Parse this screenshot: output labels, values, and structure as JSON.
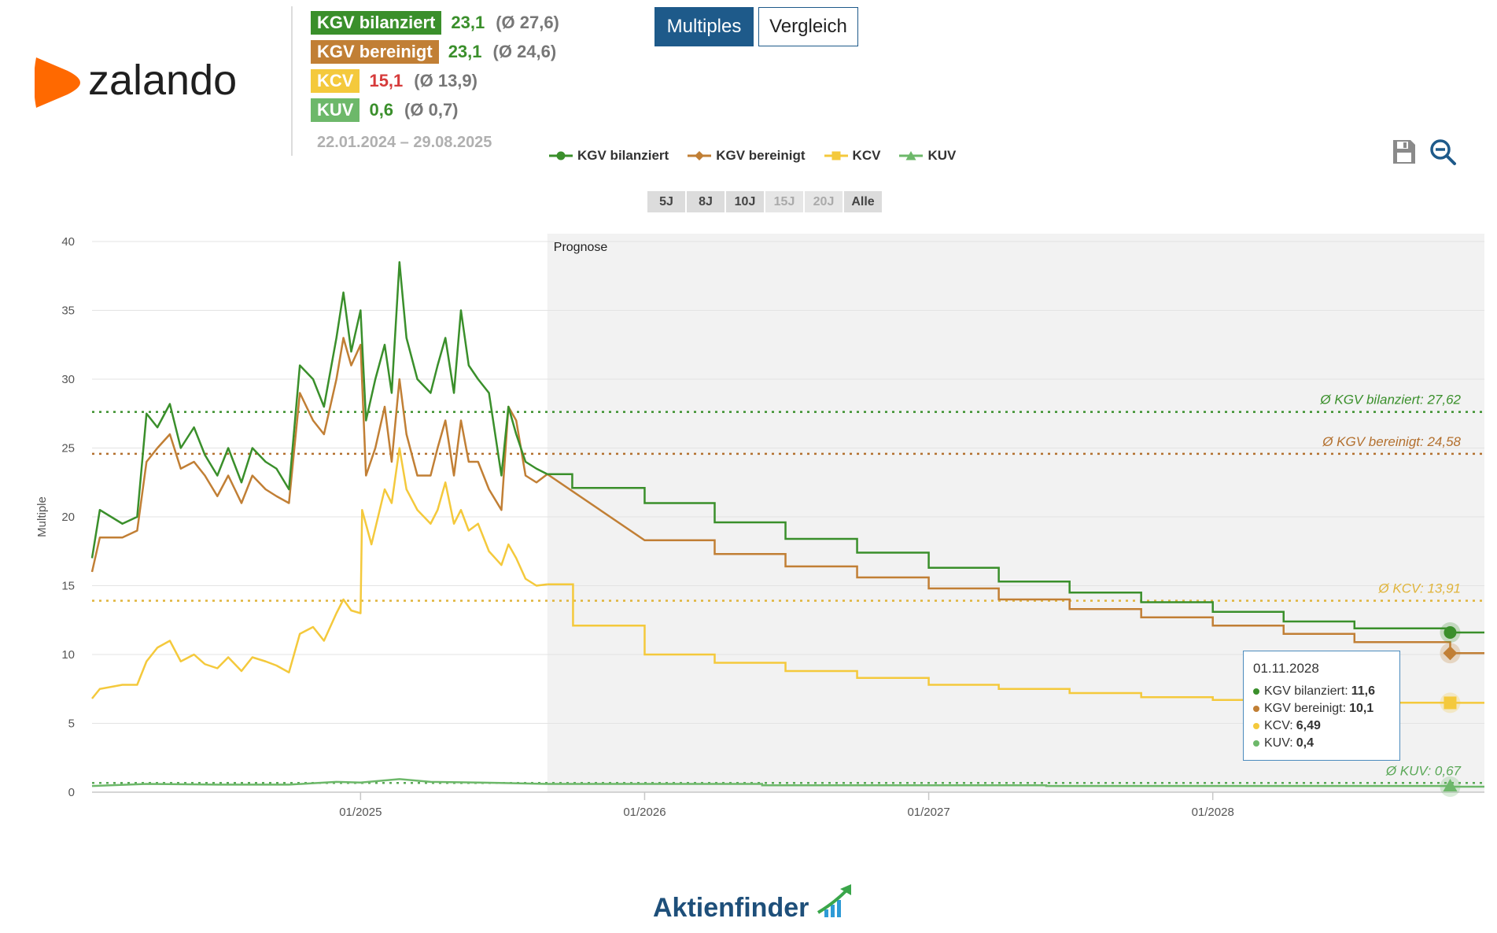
{
  "brand": {
    "name": "zalando",
    "color": "#ff6900"
  },
  "stats": [
    {
      "label": "KGV bilanziert",
      "value": "23,1",
      "avg": "(Ø 27,6)",
      "color": "#3a8f2b",
      "value_color": "#3a8f2b"
    },
    {
      "label": "KGV bereinigt",
      "value": "23,1",
      "avg": "(Ø 24,6)",
      "color": "#c17f35",
      "value_color": "#3a8f2b"
    },
    {
      "label": "KCV",
      "value": "15,1",
      "avg": "(Ø 13,9)",
      "color": "#f4c93c",
      "value_color": "#d63b3b"
    },
    {
      "label": "KUV",
      "value": "0,6",
      "avg": "(Ø 0,7)",
      "color": "#6db86a",
      "value_color": "#3a8f2b"
    }
  ],
  "date_range": "22.01.2024 – 29.08.2025",
  "toggle": {
    "active": "Multiples",
    "inactive": "Vergleich"
  },
  "legend": [
    {
      "label": "KGV bilanziert",
      "color": "#3a8f2b",
      "marker": "circle"
    },
    {
      "label": "KGV bereinigt",
      "color": "#c17f35",
      "marker": "diamond"
    },
    {
      "label": "KCV",
      "color": "#f4c93c",
      "marker": "square"
    },
    {
      "label": "KUV",
      "color": "#6db86a",
      "marker": "triangle"
    }
  ],
  "tools": {
    "save": "save-icon",
    "zoom": "zoom-out-icon"
  },
  "ranges": [
    {
      "label": "5J",
      "enabled": true
    },
    {
      "label": "8J",
      "enabled": true
    },
    {
      "label": "10J",
      "enabled": true
    },
    {
      "label": "15J",
      "enabled": false
    },
    {
      "label": "20J",
      "enabled": false
    },
    {
      "label": "Alle",
      "enabled": true
    }
  ],
  "tooltip": {
    "date": "01.11.2028",
    "rows": [
      {
        "label": "KGV bilanziert:",
        "value": "11,6",
        "color": "#3a8f2b"
      },
      {
        "label": "KGV bereinigt:",
        "value": "10,1",
        "color": "#c17f35"
      },
      {
        "label": "KCV:",
        "value": "6,49",
        "color": "#f4c93c"
      },
      {
        "label": "KUV:",
        "value": "0,4",
        "color": "#6db86a"
      }
    ]
  },
  "footer": {
    "brand": "Aktienfinder"
  },
  "chart_data": {
    "type": "line",
    "ylabel": "Multiple",
    "ylim": [
      0,
      40
    ],
    "yticks": [
      0,
      5,
      10,
      15,
      20,
      25,
      30,
      35,
      40
    ],
    "xlim": [
      "2024-01-22",
      "2028-12-15"
    ],
    "xticks": [
      {
        "date": "2025-01-01",
        "label": "01/2025"
      },
      {
        "date": "2026-01-01",
        "label": "01/2026"
      },
      {
        "date": "2027-01-01",
        "label": "01/2027"
      },
      {
        "date": "2028-01-01",
        "label": "01/2028"
      }
    ],
    "forecast_start": "2025-08-29",
    "forecast_label": "Prognose",
    "averages": [
      {
        "series": "KGV bilanziert",
        "value": 27.62,
        "label": "Ø KGV bilanziert: 27,62",
        "color": "#3a8f2b"
      },
      {
        "series": "KGV bereinigt",
        "value": 24.58,
        "label": "Ø KGV bereinigt: 24,58",
        "color": "#b3702e"
      },
      {
        "series": "KCV",
        "value": 13.91,
        "label": "Ø KCV: 13,91",
        "color": "#e0b43a"
      },
      {
        "series": "KUV",
        "value": 0.67,
        "label": "Ø KUV: 0,67",
        "color": "#5aa857"
      }
    ],
    "series": [
      {
        "name": "KGV bilanziert",
        "color": "#3a8f2b",
        "marker": "circle",
        "history": [
          [
            "2024-01-22",
            17
          ],
          [
            "2024-02-01",
            20.5
          ],
          [
            "2024-03-01",
            19.5
          ],
          [
            "2024-03-20",
            20
          ],
          [
            "2024-04-01",
            27.5
          ],
          [
            "2024-04-15",
            26.5
          ],
          [
            "2024-05-01",
            28.2
          ],
          [
            "2024-05-15",
            25
          ],
          [
            "2024-06-01",
            26.5
          ],
          [
            "2024-06-15",
            24.5
          ],
          [
            "2024-07-01",
            23
          ],
          [
            "2024-07-15",
            25
          ],
          [
            "2024-08-01",
            22.5
          ],
          [
            "2024-08-15",
            25
          ],
          [
            "2024-09-01",
            24
          ],
          [
            "2024-09-15",
            23.5
          ],
          [
            "2024-10-01",
            22
          ],
          [
            "2024-10-15",
            31
          ],
          [
            "2024-11-01",
            30
          ],
          [
            "2024-11-15",
            28
          ],
          [
            "2024-12-01",
            33
          ],
          [
            "2024-12-10",
            36.3
          ],
          [
            "2024-12-20",
            32
          ],
          [
            "2025-01-01",
            35
          ],
          [
            "2025-01-08",
            27
          ],
          [
            "2025-01-20",
            30
          ],
          [
            "2025-02-01",
            32.5
          ],
          [
            "2025-02-10",
            29
          ],
          [
            "2025-02-20",
            38.5
          ],
          [
            "2025-03-01",
            33
          ],
          [
            "2025-03-15",
            30
          ],
          [
            "2025-04-01",
            29
          ],
          [
            "2025-04-10",
            31
          ],
          [
            "2025-04-20",
            33
          ],
          [
            "2025-05-01",
            29
          ],
          [
            "2025-05-10",
            35
          ],
          [
            "2025-05-20",
            31
          ],
          [
            "2025-06-01",
            30
          ],
          [
            "2025-06-15",
            29
          ],
          [
            "2025-07-01",
            23
          ],
          [
            "2025-07-10",
            28
          ],
          [
            "2025-07-20",
            26
          ],
          [
            "2025-08-01",
            24
          ],
          [
            "2025-08-15",
            23.5
          ],
          [
            "2025-08-29",
            23.1
          ]
        ],
        "forecast": [
          [
            "2025-08-29",
            23.1
          ],
          [
            "2025-09-30",
            22.1
          ],
          [
            "2026-01-01",
            21.0
          ],
          [
            "2026-04-01",
            19.6
          ],
          [
            "2026-07-01",
            18.4
          ],
          [
            "2026-10-01",
            17.4
          ],
          [
            "2027-01-01",
            16.3
          ],
          [
            "2027-04-01",
            15.3
          ],
          [
            "2027-07-01",
            14.5
          ],
          [
            "2027-10-01",
            13.8
          ],
          [
            "2028-01-01",
            13.1
          ],
          [
            "2028-04-01",
            12.4
          ],
          [
            "2028-07-01",
            11.9
          ],
          [
            "2028-11-01",
            11.6
          ]
        ]
      },
      {
        "name": "KGV bereinigt",
        "color": "#c17f35",
        "marker": "diamond",
        "history": [
          [
            "2024-01-22",
            16
          ],
          [
            "2024-02-01",
            18.5
          ],
          [
            "2024-03-01",
            18.5
          ],
          [
            "2024-03-20",
            19
          ],
          [
            "2024-04-01",
            24
          ],
          [
            "2024-04-15",
            25
          ],
          [
            "2024-05-01",
            26
          ],
          [
            "2024-05-15",
            23.5
          ],
          [
            "2024-06-01",
            24
          ],
          [
            "2024-06-15",
            23
          ],
          [
            "2024-07-01",
            21.5
          ],
          [
            "2024-07-15",
            23
          ],
          [
            "2024-08-01",
            21
          ],
          [
            "2024-08-15",
            23
          ],
          [
            "2024-09-01",
            22
          ],
          [
            "2024-09-15",
            21.5
          ],
          [
            "2024-10-01",
            21
          ],
          [
            "2024-10-15",
            29
          ],
          [
            "2024-11-01",
            27
          ],
          [
            "2024-11-15",
            26
          ],
          [
            "2024-12-01",
            30
          ],
          [
            "2024-12-10",
            33
          ],
          [
            "2024-12-20",
            31
          ],
          [
            "2025-01-01",
            32.5
          ],
          [
            "2025-01-08",
            23
          ],
          [
            "2025-01-20",
            25
          ],
          [
            "2025-02-01",
            28
          ],
          [
            "2025-02-10",
            24
          ],
          [
            "2025-02-20",
            30
          ],
          [
            "2025-03-01",
            26
          ],
          [
            "2025-03-15",
            23
          ],
          [
            "2025-04-01",
            23
          ],
          [
            "2025-04-10",
            25
          ],
          [
            "2025-04-20",
            27
          ],
          [
            "2025-05-01",
            23
          ],
          [
            "2025-05-10",
            27
          ],
          [
            "2025-05-20",
            24
          ],
          [
            "2025-06-01",
            24
          ],
          [
            "2025-06-15",
            22
          ],
          [
            "2025-07-01",
            20.5
          ],
          [
            "2025-07-10",
            28
          ],
          [
            "2025-07-20",
            27
          ],
          [
            "2025-08-01",
            23
          ],
          [
            "2025-08-15",
            22.5
          ],
          [
            "2025-08-29",
            23.1
          ]
        ],
        "forecast": [
          [
            "2025-08-29",
            23.1
          ],
          [
            "2026-01-01",
            18.3
          ],
          [
            "2026-04-01",
            17.3
          ],
          [
            "2026-07-01",
            16.4
          ],
          [
            "2026-10-01",
            15.6
          ],
          [
            "2027-01-01",
            14.8
          ],
          [
            "2027-04-01",
            14.0
          ],
          [
            "2027-07-01",
            13.3
          ],
          [
            "2027-10-01",
            12.7
          ],
          [
            "2028-01-01",
            12.1
          ],
          [
            "2028-04-01",
            11.5
          ],
          [
            "2028-07-01",
            10.9
          ],
          [
            "2028-11-01",
            10.1
          ]
        ]
      },
      {
        "name": "KCV",
        "color": "#f4c93c",
        "marker": "square",
        "history": [
          [
            "2024-01-22",
            6.8
          ],
          [
            "2024-02-01",
            7.5
          ],
          [
            "2024-03-01",
            7.8
          ],
          [
            "2024-03-20",
            7.8
          ],
          [
            "2024-04-01",
            9.5
          ],
          [
            "2024-04-15",
            10.5
          ],
          [
            "2024-05-01",
            11
          ],
          [
            "2024-05-15",
            9.5
          ],
          [
            "2024-06-01",
            10
          ],
          [
            "2024-06-15",
            9.3
          ],
          [
            "2024-07-01",
            9
          ],
          [
            "2024-07-15",
            9.8
          ],
          [
            "2024-08-01",
            8.8
          ],
          [
            "2024-08-15",
            9.8
          ],
          [
            "2024-09-01",
            9.5
          ],
          [
            "2024-09-15",
            9.2
          ],
          [
            "2024-10-01",
            8.7
          ],
          [
            "2024-10-15",
            11.5
          ],
          [
            "2024-11-01",
            12
          ],
          [
            "2024-11-15",
            11
          ],
          [
            "2024-12-01",
            13
          ],
          [
            "2024-12-10",
            14
          ],
          [
            "2024-12-20",
            13.2
          ],
          [
            "2025-01-01",
            13
          ],
          [
            "2025-01-03",
            20.5
          ],
          [
            "2025-01-15",
            18
          ],
          [
            "2025-02-01",
            22
          ],
          [
            "2025-02-10",
            21
          ],
          [
            "2025-02-20",
            25
          ],
          [
            "2025-03-01",
            22
          ],
          [
            "2025-03-15",
            20.5
          ],
          [
            "2025-04-01",
            19.5
          ],
          [
            "2025-04-10",
            20.5
          ],
          [
            "2025-04-20",
            22.5
          ],
          [
            "2025-05-01",
            19.5
          ],
          [
            "2025-05-10",
            20.5
          ],
          [
            "2025-05-20",
            19
          ],
          [
            "2025-06-01",
            19.5
          ],
          [
            "2025-06-15",
            17.5
          ],
          [
            "2025-07-01",
            16.5
          ],
          [
            "2025-07-10",
            18
          ],
          [
            "2025-07-20",
            17
          ],
          [
            "2025-08-01",
            15.5
          ],
          [
            "2025-08-15",
            15
          ],
          [
            "2025-08-29",
            15.1
          ]
        ],
        "forecast": [
          [
            "2025-08-29",
            15.1
          ],
          [
            "2025-10-01",
            12.1
          ],
          [
            "2026-01-01",
            10.0
          ],
          [
            "2026-04-01",
            9.4
          ],
          [
            "2026-07-01",
            8.8
          ],
          [
            "2026-10-01",
            8.3
          ],
          [
            "2027-01-01",
            7.8
          ],
          [
            "2027-04-01",
            7.5
          ],
          [
            "2027-07-01",
            7.2
          ],
          [
            "2027-10-01",
            6.9
          ],
          [
            "2028-01-01",
            6.7
          ],
          [
            "2028-04-01",
            6.6
          ],
          [
            "2028-07-01",
            6.5
          ],
          [
            "2028-11-01",
            6.49
          ]
        ]
      },
      {
        "name": "KUV",
        "color": "#6db86a",
        "marker": "triangle",
        "history": [
          [
            "2024-01-22",
            0.45
          ],
          [
            "2024-04-01",
            0.6
          ],
          [
            "2024-07-01",
            0.55
          ],
          [
            "2024-10-01",
            0.55
          ],
          [
            "2024-12-01",
            0.75
          ],
          [
            "2025-01-01",
            0.7
          ],
          [
            "2025-02-20",
            0.95
          ],
          [
            "2025-04-01",
            0.75
          ],
          [
            "2025-06-01",
            0.7
          ],
          [
            "2025-08-29",
            0.6
          ]
        ],
        "forecast": [
          [
            "2025-08-29",
            0.6
          ],
          [
            "2026-06-01",
            0.5
          ],
          [
            "2027-06-01",
            0.45
          ],
          [
            "2028-11-01",
            0.4
          ]
        ]
      }
    ]
  }
}
